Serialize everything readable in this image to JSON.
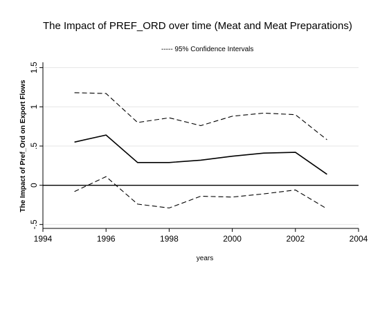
{
  "chart_data": {
    "type": "line",
    "title": "The Impact of PREF_ORD over time (Meat and Meat Preparations)",
    "legend_label": "----- 95% Confidence Intervals",
    "xlabel": "years",
    "ylabel": "The Impact of Pref_Ord on Export Flows",
    "xlim": [
      1994,
      2004
    ],
    "ylim": [
      -0.55,
      1.55
    ],
    "x_ticks": [
      1994,
      1996,
      1998,
      2000,
      2002,
      2004
    ],
    "x_tick_labels": [
      "1994",
      "1996",
      "1998",
      "2000",
      "2002",
      "2004"
    ],
    "y_ticks": [
      -0.5,
      0,
      0.5,
      1,
      1.5
    ],
    "y_tick_labels": [
      "-.5",
      "0",
      ".5",
      "1",
      "1.5"
    ],
    "grid": true,
    "reference_line_y": 0,
    "x": [
      1995,
      1996,
      1997,
      1998,
      1999,
      2000,
      2001,
      2002,
      2003
    ],
    "series": [
      {
        "role": "estimate",
        "style": "solid",
        "values": [
          0.55,
          0.64,
          0.29,
          0.29,
          0.32,
          0.37,
          0.41,
          0.42,
          0.14
        ]
      },
      {
        "role": "upper",
        "style": "dashed",
        "values": [
          1.18,
          1.17,
          0.8,
          0.86,
          0.76,
          0.88,
          0.92,
          0.9,
          0.58
        ]
      },
      {
        "role": "lower",
        "style": "dashed",
        "values": [
          -0.08,
          0.11,
          -0.24,
          -0.29,
          -0.14,
          -0.15,
          -0.11,
          -0.06,
          -0.3
        ]
      }
    ],
    "colors": {
      "line": "#000000",
      "grid": "#e6e6e6",
      "axis": "#000000"
    }
  }
}
